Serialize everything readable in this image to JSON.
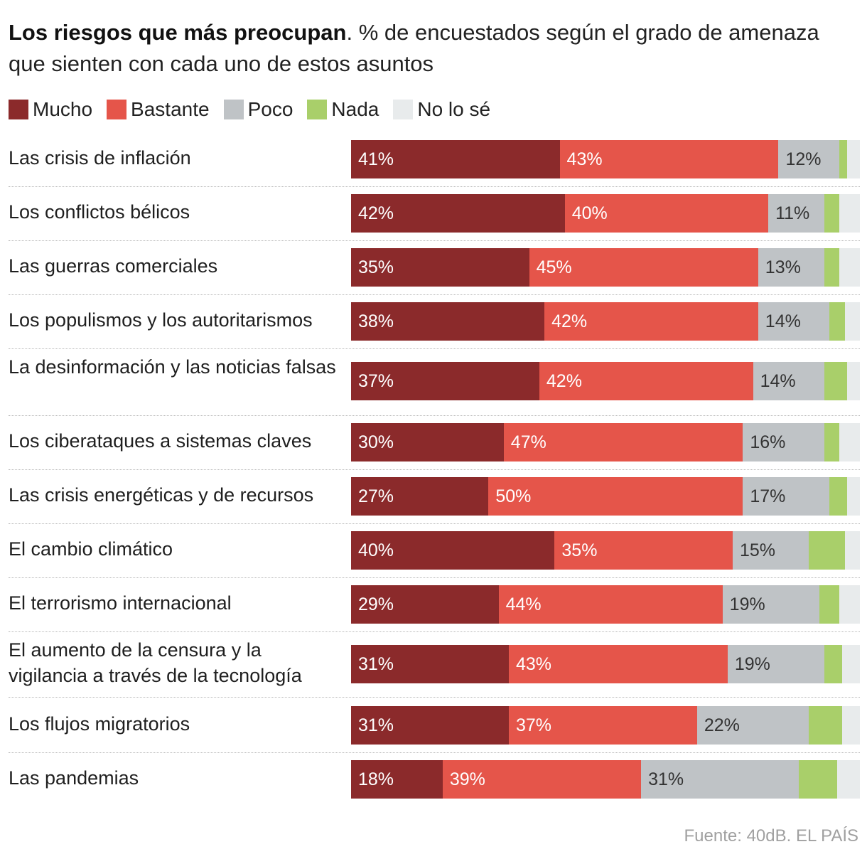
{
  "header": {
    "title_bold": "Los riesgos que más preocupan",
    "title_rest": ". % de encuestados según el grado de amenaza que sienten con cada uno de estos asuntos"
  },
  "source": "Fuente: 40dB. EL PAÍS",
  "colors": {
    "Mucho": "#8b2a2b",
    "Bastante": "#e5554a",
    "Poco": "#bfc3c6",
    "Nada": "#a9cf6a",
    "No lo sé": "#e8ebec"
  },
  "chart_data": {
    "type": "bar",
    "orientation": "horizontal",
    "stacked": true,
    "xlim": [
      0,
      100
    ],
    "unit": "%",
    "legend_position": "top-left",
    "categories": [
      "Las crisis de inflación",
      "Los conflictos bélicos",
      "Las guerras comerciales",
      "Los populismos y los autoritarismos",
      "La desinformación y las noticias falsas",
      "Los ciberataques a sistemas claves",
      "Las crisis energéticas y de recursos",
      "El cambio climático",
      "El terrorismo internacional",
      "El aumento de la censura y la vigilancia a través de la tecnología",
      "Los flujos migratorios",
      "Las pandemias"
    ],
    "series": [
      {
        "name": "Mucho",
        "values": [
          41,
          42,
          35,
          38,
          37,
          30,
          27,
          40,
          29,
          31,
          31,
          18
        ],
        "labels_shown": true
      },
      {
        "name": "Bastante",
        "values": [
          43,
          40,
          45,
          42,
          42,
          47,
          50,
          35,
          44,
          43,
          37,
          39
        ],
        "labels_shown": true
      },
      {
        "name": "Poco",
        "values": [
          12,
          11,
          13,
          14,
          14,
          16,
          17,
          15,
          19,
          19,
          22,
          31
        ],
        "labels_shown": true
      },
      {
        "name": "Nada",
        "values": [
          1.5,
          3,
          3,
          3,
          4.5,
          3,
          3.5,
          7,
          4,
          3.5,
          6.5,
          7.5
        ],
        "labels_shown": false
      },
      {
        "name": "No lo sé",
        "values": [
          2.5,
          4,
          4,
          3,
          2.5,
          4,
          2.5,
          3,
          4,
          3.5,
          3.5,
          4.5
        ],
        "labels_shown": false
      }
    ]
  }
}
